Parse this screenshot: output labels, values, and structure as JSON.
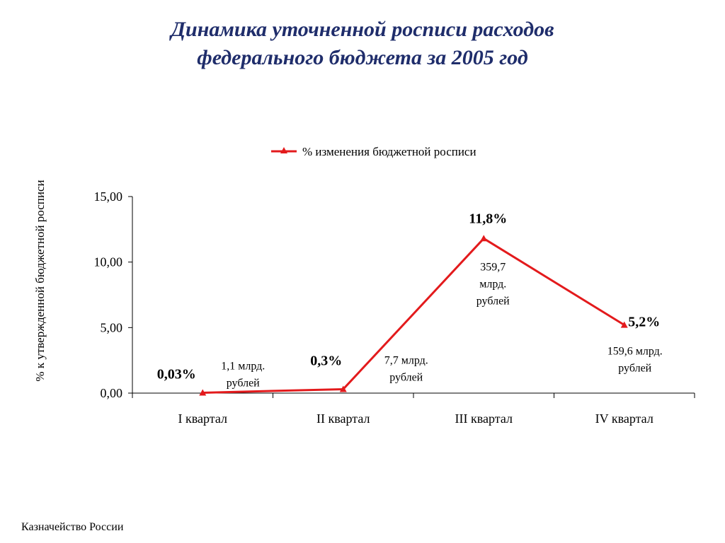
{
  "slide": {
    "title_line1": "Динамика уточненной росписи расходов",
    "title_line2": "федерального бюджета за 2005 год",
    "footer": "Казначейство России"
  },
  "colors": {
    "title": "#1f2d6b",
    "series": "#e31a1c",
    "text": "#000000"
  },
  "chart_data": {
    "type": "line",
    "title": "",
    "xlabel": "",
    "ylabel": "% к  утвержденной бюджетной росписи",
    "categories": [
      "I квартал",
      "II квартал",
      "III квартал",
      "IV квартал"
    ],
    "ylim": [
      0,
      15
    ],
    "y_ticks": [
      "0,00",
      "5,00",
      "10,00",
      "15,00"
    ],
    "grid": false,
    "legend_position": "top",
    "series": [
      {
        "name": "% изменения бюджетной росписи",
        "marker": "triangle",
        "values": [
          0.03,
          0.3,
          11.8,
          5.2
        ]
      }
    ],
    "annotations": {
      "percent_labels": [
        "0,03%",
        "0,3%",
        "11,8%",
        "5,2%"
      ],
      "amount_labels": [
        [
          "1,1 млрд.",
          "рублей"
        ],
        [
          "7,7 млрд.",
          "рублей"
        ],
        [
          "359,7",
          "млрд.",
          "рублей"
        ],
        [
          "159,6 млрд.",
          "рублей"
        ]
      ]
    }
  }
}
